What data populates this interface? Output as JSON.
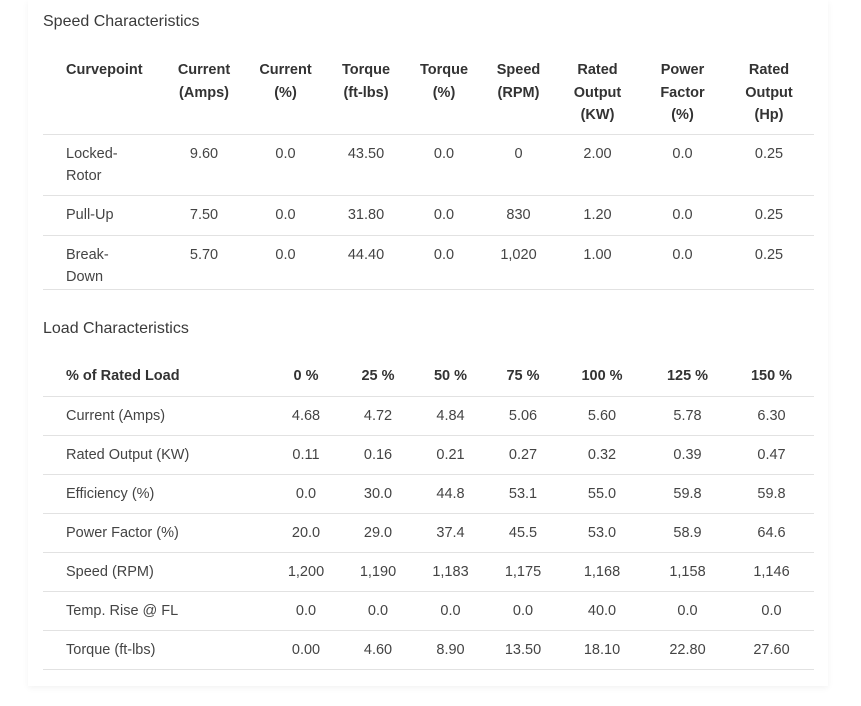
{
  "speed": {
    "title": "Speed Characteristics",
    "headers": [
      [
        "Curvepoint"
      ],
      [
        "Current",
        "(Amps)"
      ],
      [
        "Current",
        "(%)"
      ],
      [
        "Torque",
        "(ft-lbs)"
      ],
      [
        "Torque",
        "(%)"
      ],
      [
        "Speed",
        "(RPM)"
      ],
      [
        "Rated",
        "Output",
        "(KW)"
      ],
      [
        "Power",
        "Factor",
        "(%)"
      ],
      [
        "Rated",
        "Output",
        "(Hp)"
      ]
    ],
    "rows": [
      {
        "label": [
          "Locked-",
          "Rotor"
        ],
        "values": [
          "9.60",
          "0.0",
          "43.50",
          "0.0",
          "0",
          "2.00",
          "0.0",
          "0.25"
        ]
      },
      {
        "label": [
          "Pull-Up"
        ],
        "values": [
          "7.50",
          "0.0",
          "31.80",
          "0.0",
          "830",
          "1.20",
          "0.0",
          "0.25"
        ]
      },
      {
        "label": [
          "Break-",
          "Down"
        ],
        "values": [
          "5.70",
          "0.0",
          "44.40",
          "0.0",
          "1,020",
          "1.00",
          "0.0",
          "0.25"
        ]
      }
    ]
  },
  "load": {
    "title": "Load Characteristics",
    "headers": [
      "% of Rated Load",
      "0 %",
      "25 %",
      "50 %",
      "75 %",
      "100 %",
      "125 %",
      "150 %"
    ],
    "rows": [
      {
        "label": "Current (Amps)",
        "values": [
          "4.68",
          "4.72",
          "4.84",
          "5.06",
          "5.60",
          "5.78",
          "6.30"
        ]
      },
      {
        "label": "Rated Output (KW)",
        "values": [
          "0.11",
          "0.16",
          "0.21",
          "0.27",
          "0.32",
          "0.39",
          "0.47"
        ]
      },
      {
        "label": "Efficiency (%)",
        "values": [
          "0.0",
          "30.0",
          "44.8",
          "53.1",
          "55.0",
          "59.8",
          "59.8"
        ]
      },
      {
        "label": "Power Factor (%)",
        "values": [
          "20.0",
          "29.0",
          "37.4",
          "45.5",
          "53.0",
          "58.9",
          "64.6"
        ]
      },
      {
        "label": "Speed (RPM)",
        "values": [
          "1,200",
          "1,190",
          "1,183",
          "1,175",
          "1,168",
          "1,158",
          "1,146"
        ]
      },
      {
        "label": "Temp. Rise @ FL",
        "values": [
          "0.0",
          "0.0",
          "0.0",
          "0.0",
          "40.0",
          "0.0",
          "0.0"
        ]
      },
      {
        "label": "Torque (ft-lbs)",
        "values": [
          "0.00",
          "4.60",
          "8.90",
          "13.50",
          "18.10",
          "22.80",
          "27.60"
        ]
      }
    ]
  }
}
